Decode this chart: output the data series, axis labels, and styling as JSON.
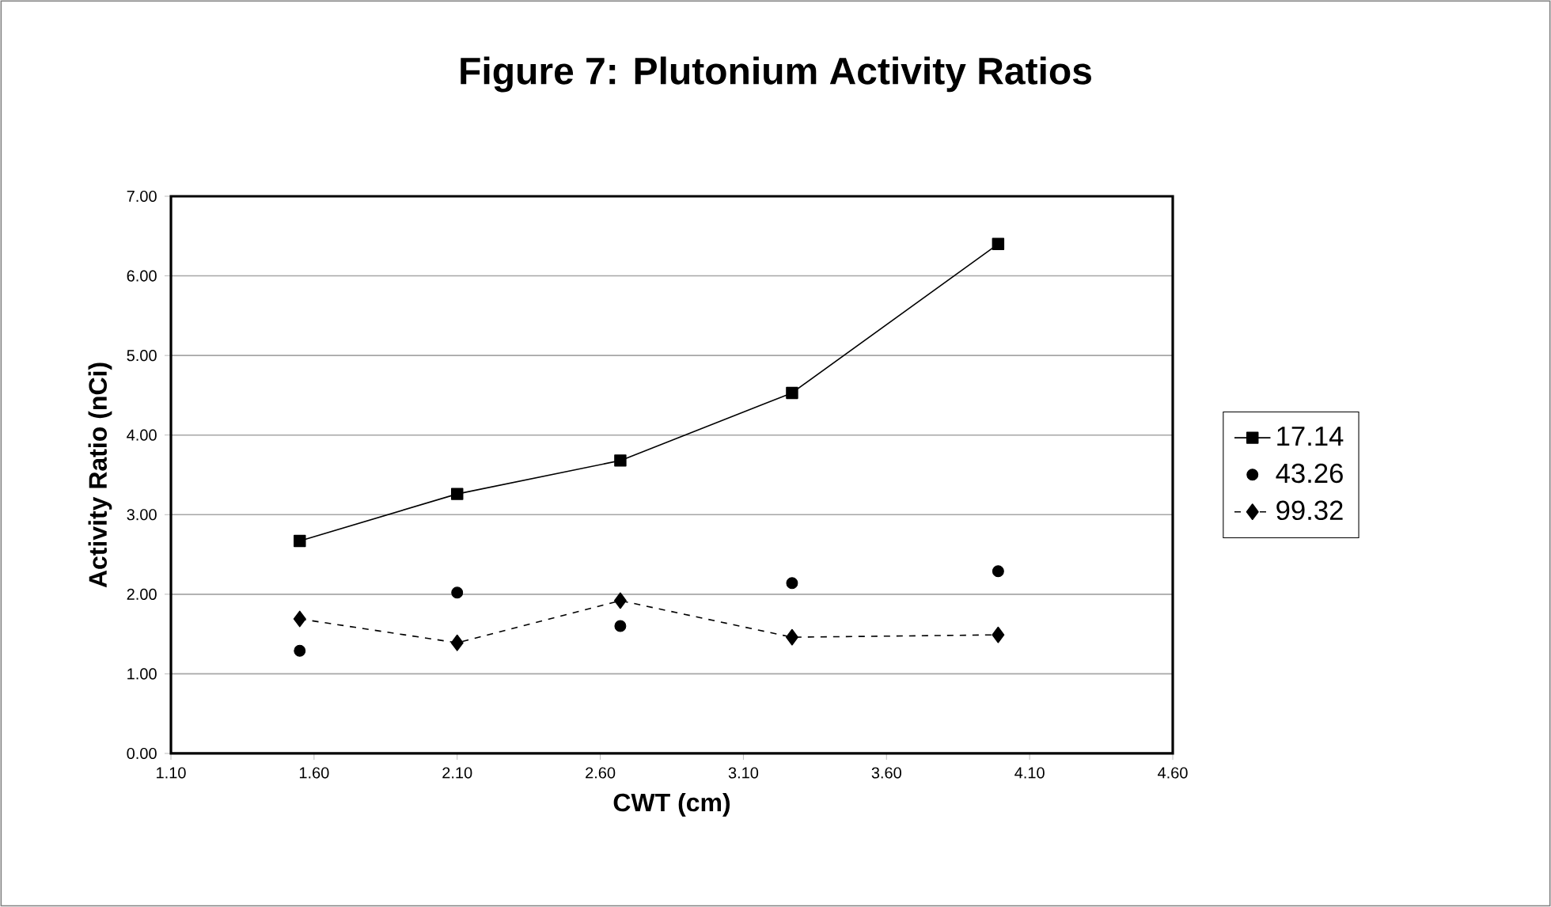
{
  "chart_data": {
    "type": "line",
    "title": "Figure 7: Plutonium Activity Ratios",
    "xlabel": "CWT (cm)",
    "ylabel": "Activity Ratio (nCi)",
    "xlim": [
      1.1,
      4.6
    ],
    "xticks": [
      {
        "value": 1.1,
        "label": "1.10"
      },
      {
        "value": 1.6,
        "label": "1.60"
      },
      {
        "value": 2.1,
        "label": "2.10"
      },
      {
        "value": 2.6,
        "label": "2.60"
      },
      {
        "value": 3.1,
        "label": "3.10"
      },
      {
        "value": 3.6,
        "label": "3.60"
      },
      {
        "value": 4.1,
        "label": "4.10"
      },
      {
        "value": 4.6,
        "label": "4.60"
      }
    ],
    "ylim": [
      0,
      7
    ],
    "yticks": [
      {
        "value": 0,
        "label": "0.00"
      },
      {
        "value": 1,
        "label": "1.00"
      },
      {
        "value": 2,
        "label": "2.00"
      },
      {
        "value": 3,
        "label": "3.00"
      },
      {
        "value": 4,
        "label": "4.00"
      },
      {
        "value": 5,
        "label": "5.00"
      },
      {
        "value": 6,
        "label": "6.00"
      },
      {
        "value": 7,
        "label": "7.00"
      }
    ],
    "grid": "y",
    "legend": "right",
    "x": [
      1.55,
      2.1,
      2.67,
      3.27,
      3.99
    ],
    "series": [
      {
        "name": "17.14",
        "color": "#000000",
        "marker": "square",
        "line_style": "solid",
        "values": [
          2.67,
          3.26,
          3.68,
          4.53,
          6.4
        ]
      },
      {
        "name": "43.26",
        "type": "scatter",
        "color": "#000000",
        "marker": "circle",
        "values": [
          1.29,
          2.02,
          1.6,
          2.14,
          2.29
        ]
      },
      {
        "name": "99.32",
        "color": "#000000",
        "marker": "diamond",
        "line_style": "dashed",
        "values": [
          1.69,
          1.39,
          1.92,
          1.46,
          1.49
        ]
      }
    ]
  }
}
